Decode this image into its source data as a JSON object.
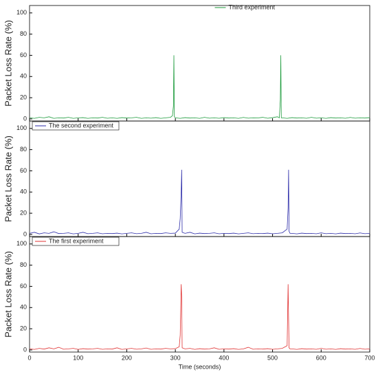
{
  "chart_data": [
    {
      "type": "line",
      "ylabel": "Packet Loss Rate (%)",
      "legend": "top",
      "x": [
        0,
        10,
        20,
        30,
        40,
        50,
        60,
        70,
        80,
        90,
        100,
        110,
        120,
        130,
        140,
        150,
        160,
        170,
        180,
        190,
        200,
        210,
        220,
        230,
        240,
        250,
        260,
        270,
        280,
        290,
        294,
        296,
        297,
        298,
        300,
        310,
        320,
        330,
        340,
        350,
        360,
        370,
        380,
        390,
        400,
        410,
        420,
        430,
        440,
        450,
        460,
        470,
        480,
        490,
        500,
        510,
        514,
        516,
        517,
        518,
        520,
        530,
        540,
        550,
        560,
        570,
        580,
        590,
        600,
        610,
        620,
        630,
        640,
        650,
        660,
        670,
        680,
        690,
        700
      ],
      "series": [
        {
          "name": "Third experiment",
          "color": "#1a9a3a",
          "values": [
            1,
            0.5,
            1.5,
            1,
            2,
            0.5,
            1,
            0.8,
            1.5,
            0.5,
            1,
            1.2,
            0.5,
            1,
            0.8,
            1.5,
            0.6,
            1,
            0.5,
            1.2,
            0.8,
            1,
            1.5,
            0.5,
            1,
            0.7,
            1.2,
            0.5,
            1,
            1.5,
            3,
            12,
            60,
            2,
            1,
            0.5,
            1.2,
            0.8,
            1,
            0.5,
            1.5,
            0.7,
            1,
            0.6,
            1.2,
            0.8,
            1,
            0.5,
            1.4,
            0.7,
            1,
            0.9,
            1.5,
            0.6,
            1.2,
            2,
            1,
            18,
            60,
            1,
            1,
            0.5,
            1.2,
            0.8,
            1,
            0.6,
            1.5,
            0.7,
            1,
            0.5,
            1.2,
            0.8,
            1,
            0.6,
            1.4,
            0.7,
            1,
            0.8,
            1.2
          ]
        }
      ],
      "xlim": [
        0,
        700
      ],
      "ylim": [
        -2,
        107
      ],
      "yticks": [
        0,
        20,
        40,
        60,
        80,
        100
      ]
    },
    {
      "type": "line",
      "ylabel": "Packet Loss Rate (%)",
      "legend": "upper left",
      "x": [
        0,
        10,
        20,
        30,
        40,
        50,
        60,
        70,
        80,
        90,
        100,
        110,
        120,
        130,
        140,
        150,
        160,
        170,
        180,
        190,
        200,
        210,
        220,
        230,
        240,
        250,
        260,
        270,
        280,
        290,
        300,
        308,
        310,
        312,
        313,
        314,
        320,
        330,
        340,
        350,
        360,
        370,
        380,
        390,
        400,
        410,
        420,
        430,
        440,
        450,
        460,
        470,
        480,
        490,
        500,
        510,
        520,
        530,
        532,
        533,
        534,
        536,
        540,
        550,
        560,
        570,
        580,
        590,
        600,
        610,
        620,
        630,
        640,
        650,
        660,
        670,
        680,
        690,
        700
      ],
      "series": [
        {
          "name": "The second experiment",
          "color": "#2a2aa8",
          "values": [
            1,
            2,
            0.5,
            1.5,
            1,
            2.5,
            0.8,
            1,
            1.5,
            0.5,
            1,
            2,
            0.7,
            1,
            1.5,
            0.6,
            1,
            0.8,
            1.2,
            0.5,
            1,
            1.5,
            0.7,
            1,
            2,
            0.6,
            1,
            0.8,
            1.5,
            1,
            1.2,
            5,
            15,
            40,
            61,
            2,
            1,
            2,
            0.5,
            1.2,
            0.8,
            1,
            1.5,
            0.6,
            1,
            0.8,
            1.2,
            0.5,
            1,
            1.5,
            0.7,
            1,
            0.8,
            1.2,
            0.6,
            1,
            1.5,
            5,
            25,
            61,
            3,
            1,
            1,
            0.5,
            1.2,
            0.8,
            1,
            0.6,
            1.5,
            0.7,
            1,
            0.5,
            1.2,
            0.8,
            1,
            0.6,
            1.4,
            0.7,
            1
          ]
        }
      ],
      "xlim": [
        0,
        700
      ],
      "ylim": [
        -2,
        107
      ],
      "yticks": [
        0,
        20,
        40,
        60,
        80,
        100
      ]
    },
    {
      "type": "line",
      "ylabel": "Packet Loss Rate (%)",
      "legend": "upper left",
      "xlabel": "Time (seconds)",
      "x": [
        0,
        10,
        20,
        30,
        40,
        50,
        60,
        70,
        80,
        90,
        100,
        110,
        120,
        130,
        140,
        150,
        160,
        170,
        180,
        190,
        200,
        210,
        220,
        230,
        240,
        250,
        260,
        270,
        280,
        290,
        300,
        308,
        310,
        312,
        313,
        314,
        320,
        330,
        340,
        350,
        360,
        370,
        380,
        390,
        400,
        410,
        420,
        430,
        440,
        450,
        460,
        470,
        480,
        490,
        500,
        510,
        520,
        530,
        532,
        533,
        534,
        536,
        540,
        550,
        560,
        570,
        580,
        590,
        600,
        610,
        620,
        630,
        640,
        650,
        660,
        670,
        680,
        690,
        700
      ],
      "series": [
        {
          "name": "The first experiment",
          "color": "#e03030",
          "values": [
            1,
            0.5,
            1.5,
            0.8,
            2,
            1,
            2.5,
            0.7,
            1,
            1.5,
            0.5,
            1.2,
            0.8,
            1,
            1.5,
            0.6,
            1,
            0.8,
            2,
            0.5,
            1,
            1.5,
            0.7,
            1,
            1.8,
            0.6,
            1,
            0.8,
            1.5,
            1,
            1.2,
            3,
            14,
            62,
            50,
            2,
            1,
            1.5,
            0.5,
            1.2,
            0.8,
            1,
            2,
            0.6,
            1,
            0.8,
            1.2,
            0.5,
            1,
            2.5,
            0.7,
            1,
            0.8,
            1.2,
            0.6,
            1,
            1.5,
            4,
            62,
            30,
            2,
            1,
            1,
            0.5,
            1.2,
            0.8,
            1,
            0.6,
            1.5,
            0.7,
            1,
            0.5,
            1.2,
            0.8,
            1,
            0.6,
            1.4,
            0.7,
            1
          ]
        }
      ],
      "xlim": [
        0,
        700
      ],
      "ylim": [
        -2,
        107
      ],
      "yticks": [
        0,
        20,
        40,
        60,
        80,
        100
      ],
      "xticks": [
        0,
        100,
        200,
        300,
        400,
        500,
        600,
        700
      ]
    }
  ]
}
